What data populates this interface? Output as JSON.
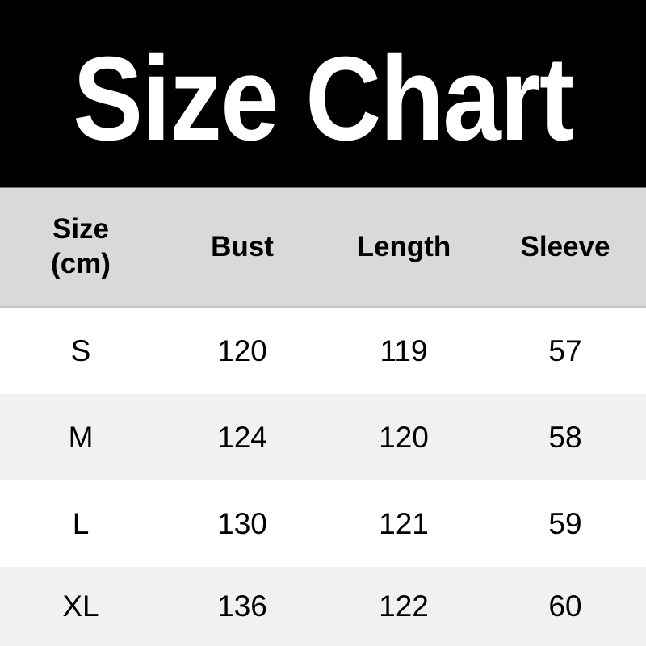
{
  "title": {
    "text": "Size Chart"
  },
  "table": {
    "header": [
      "Size\n(cm)",
      "Bust",
      "Length",
      "Sleeve"
    ],
    "rows": [
      [
        "S",
        "120",
        "119",
        "57"
      ],
      [
        "M",
        "124",
        "120",
        "58"
      ],
      [
        "L",
        "130",
        "121",
        "59"
      ],
      [
        "XL",
        "136",
        "122",
        "60"
      ]
    ]
  },
  "chart_data": {
    "type": "table",
    "title": "Size Chart",
    "unit": "cm",
    "columns": [
      "Size",
      "Bust",
      "Length",
      "Sleeve"
    ],
    "rows": [
      {
        "size": "S",
        "bust": 120,
        "length": 119,
        "sleeve": 57
      },
      {
        "size": "M",
        "bust": 124,
        "length": 120,
        "sleeve": 58
      },
      {
        "size": "L",
        "bust": 130,
        "length": 121,
        "sleeve": 59
      },
      {
        "size": "XL",
        "bust": 136,
        "length": 122,
        "sleeve": 60
      }
    ]
  },
  "colors": {
    "banner_bg": "#000000",
    "banner_text": "#ffffff",
    "header_bg": "#d9d9d9",
    "row_bg": "#ffffff",
    "row_alt_bg": "#f1f1f1",
    "text": "#000000",
    "header_top_border": "#6f6f6f",
    "header_bottom_border": "#c4c4c4"
  }
}
